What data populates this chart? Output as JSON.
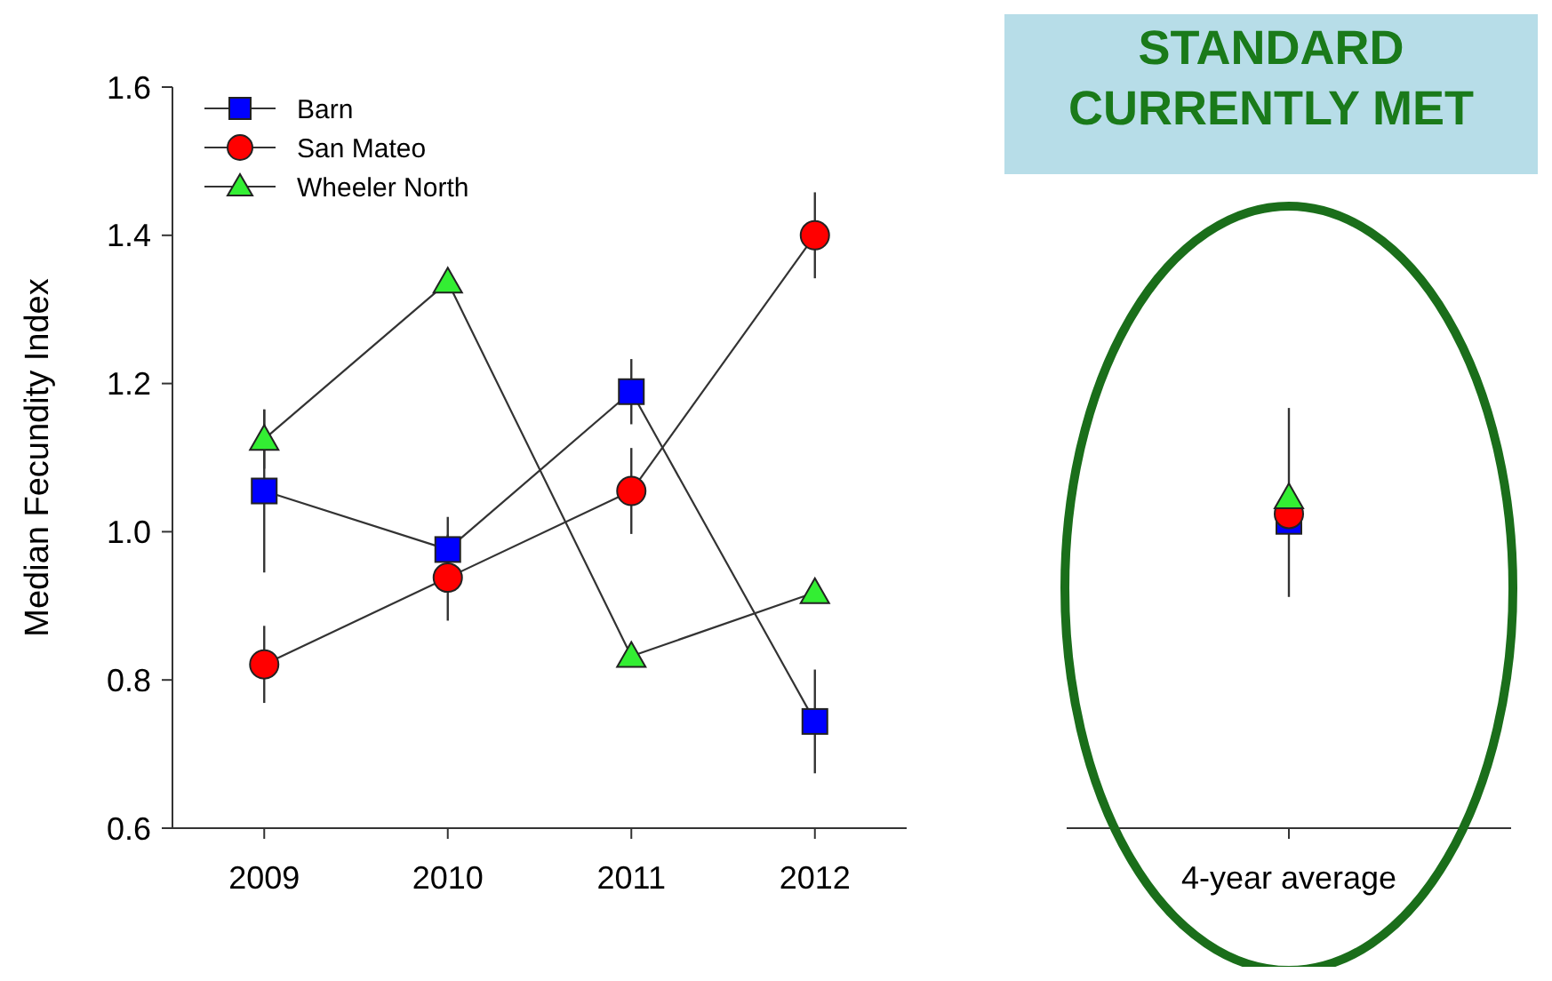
{
  "chart_data": [
    {
      "type": "line",
      "ylabel": "Median Fecundity Index",
      "categories": [
        "2009",
        "2010",
        "2011",
        "2012"
      ],
      "ylim": [
        0.6,
        1.6
      ],
      "yticks": [
        0.6,
        0.8,
        {
          "value": 1,
          "label": "1.0"
        },
        1.2,
        1.4,
        1.6
      ],
      "legend": "top left",
      "series": [
        {
          "name": "Barn",
          "color": "#0000ff",
          "marker": "square",
          "values": [
            1.055,
            0.976,
            1.189,
            0.744
          ],
          "errors": [
            0.11,
            0.044,
            0.044,
            0.07
          ]
        },
        {
          "name": "San Mateo",
          "color": "#ff0000",
          "marker": "circle",
          "values": [
            0.821,
            0.938,
            1.055,
            1.4
          ],
          "errors": [
            0.052,
            0.058,
            0.058,
            0.058
          ]
        },
        {
          "name": "Wheeler North",
          "color": "#33ee33",
          "marker": "triangle",
          "values": [
            1.125,
            1.337,
            0.832,
            0.918
          ],
          "errors": [
            0.04,
            null,
            null,
            null
          ]
        }
      ]
    },
    {
      "type": "scatter",
      "categories": [
        "4-year average"
      ],
      "ylim": [
        0.6,
        1.6
      ],
      "tick_labels": "x",
      "annotations": [
        "STANDARD CURRENTLY MET"
      ],
      "series": [
        {
          "color": "#0000ff",
          "marker": "square",
          "values": [
            1.014
          ],
          "errors": [
            [
              0.912,
              1.167
            ]
          ]
        },
        {
          "color": "#ff0000",
          "marker": "circle",
          "values": [
            1.024
          ]
        },
        {
          "color": "#33ee33",
          "marker": "triangle",
          "values": [
            1.046
          ]
        }
      ]
    }
  ]
}
